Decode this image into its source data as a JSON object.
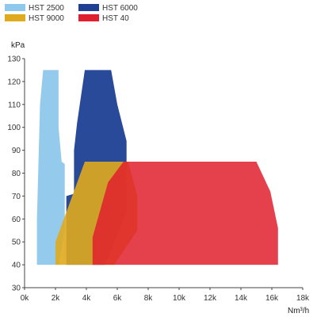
{
  "chart_data": {
    "type": "area",
    "title": "",
    "xlabel": "Nm³/h",
    "ylabel": "kPa",
    "xlim": [
      0,
      18000
    ],
    "ylim": [
      30,
      130
    ],
    "x_ticks": [
      0,
      2000,
      4000,
      6000,
      8000,
      10000,
      12000,
      14000,
      16000,
      18000
    ],
    "x_tick_labels": [
      "0k",
      "2k",
      "4k",
      "6k",
      "8k",
      "10k",
      "12k",
      "14k",
      "16k",
      "18k"
    ],
    "y_ticks": [
      30,
      40,
      50,
      60,
      70,
      80,
      90,
      100,
      110,
      120,
      130
    ],
    "y_tick_labels": [
      "30",
      "40",
      "50",
      "60",
      "70",
      "80",
      "90",
      "100",
      "110",
      "120",
      "130"
    ],
    "grid": false,
    "legend_position": "top",
    "series": [
      {
        "name": "HST 2500",
        "color": "#8ec8ec",
        "opacity": 0.95,
        "polygon": [
          [
            800,
            40
          ],
          [
            2200,
            40
          ],
          [
            2600,
            55
          ],
          [
            2600,
            84
          ],
          [
            2400,
            85
          ],
          [
            2200,
            100
          ],
          [
            2200,
            125
          ],
          [
            1200,
            125
          ],
          [
            1000,
            110
          ],
          [
            800,
            60
          ]
        ]
      },
      {
        "name": "HST 6000",
        "color": "#1e3f94",
        "opacity": 0.95,
        "polygon": [
          [
            2700,
            40
          ],
          [
            5200,
            40
          ],
          [
            6600,
            63
          ],
          [
            6600,
            94
          ],
          [
            6000,
            110
          ],
          [
            5600,
            125
          ],
          [
            3900,
            125
          ],
          [
            3400,
            102
          ],
          [
            3200,
            90
          ],
          [
            3200,
            71
          ],
          [
            2700,
            70
          ]
        ]
      },
      {
        "name": "HST 9000",
        "color": "#dfaa1e",
        "opacity": 0.9,
        "polygon": [
          [
            2000,
            40
          ],
          [
            5800,
            40
          ],
          [
            7300,
            55
          ],
          [
            7300,
            70
          ],
          [
            6700,
            85
          ],
          [
            3900,
            85
          ],
          [
            2000,
            50
          ]
        ]
      },
      {
        "name": "HST 40",
        "color": "#e0202e",
        "opacity": 0.85,
        "polygon": [
          [
            4400,
            40
          ],
          [
            16400,
            40
          ],
          [
            16400,
            56
          ],
          [
            15900,
            72
          ],
          [
            15000,
            85
          ],
          [
            6400,
            85
          ],
          [
            5400,
            76
          ],
          [
            4400,
            52
          ]
        ]
      }
    ]
  }
}
